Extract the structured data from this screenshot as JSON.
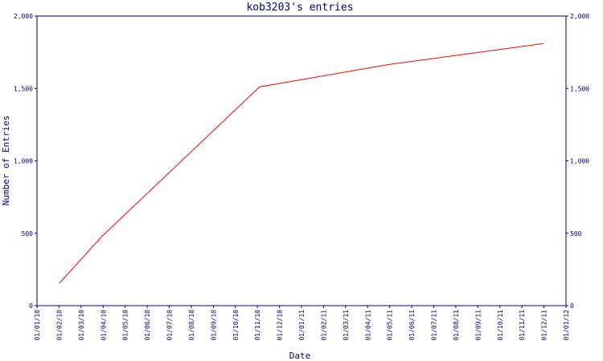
{
  "chart_data": {
    "type": "line",
    "title": "kob3203's entries",
    "xlabel": "Date",
    "ylabel": "Number of Entries",
    "x_ticks": [
      "01/01/10",
      "01/02/10",
      "01/03/10",
      "01/04/10",
      "01/05/10",
      "01/06/10",
      "01/07/10",
      "01/08/10",
      "01/09/10",
      "01/10/10",
      "01/11/10",
      "01/12/10",
      "01/01/11",
      "01/02/11",
      "01/03/11",
      "01/04/11",
      "01/05/11",
      "01/06/11",
      "01/07/11",
      "01/08/11",
      "01/09/11",
      "01/10/11",
      "01/11/11",
      "01/12/11",
      "01/01/12"
    ],
    "y_ticks": [
      0,
      500,
      1000,
      1500,
      2000
    ],
    "y_tick_labels": [
      "0",
      "500",
      "1,000",
      "1,500",
      "2,000"
    ],
    "ylim": [
      0,
      2000
    ],
    "xlim": [
      "2010-01-01",
      "2012-01-01"
    ],
    "grid": false,
    "line_color": "#ff0000",
    "axis_color": "#000080",
    "series": [
      {
        "x": [
          "2010-02-01",
          "2010-04-01",
          "2010-11-04",
          "2011-05-01",
          "2011-12-01"
        ],
        "y": [
          155,
          480,
          1510,
          1665,
          1810
        ]
      }
    ]
  }
}
